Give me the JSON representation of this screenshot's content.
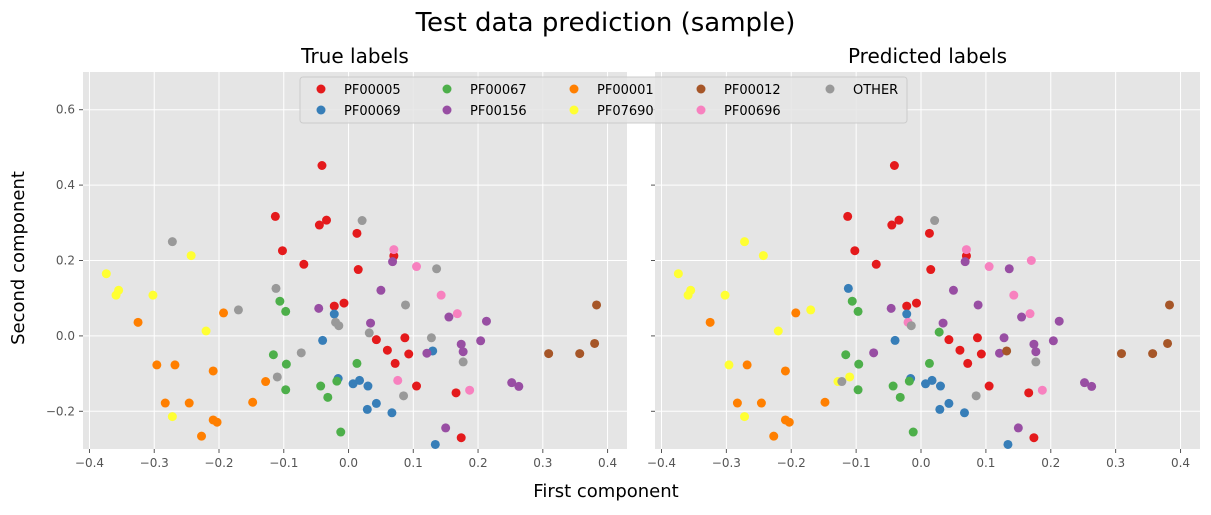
{
  "figure": {
    "title": "Test data prediction (sample)",
    "xlabel": "First component",
    "ylabel": "Second component"
  },
  "legend": {
    "placement": "top-center",
    "entries": [
      {
        "name": "PF00005",
        "color": "#e41a1c"
      },
      {
        "name": "PF00069",
        "color": "#377eb8"
      },
      {
        "name": "PF00067",
        "color": "#4daf4a"
      },
      {
        "name": "PF00156",
        "color": "#984ea3"
      },
      {
        "name": "PF00001",
        "color": "#ff7f00"
      },
      {
        "name": "PF07690",
        "color": "#ffff33"
      },
      {
        "name": "PF00012",
        "color": "#a65628"
      },
      {
        "name": "PF00696",
        "color": "#f781bf"
      },
      {
        "name": "OTHER",
        "color": "#999999"
      }
    ]
  },
  "chart_data": [
    {
      "type": "scatter",
      "title": "True labels",
      "xlim": [
        -0.41,
        0.43
      ],
      "ylim": [
        -0.3,
        0.7
      ],
      "xticks": [
        -0.4,
        -0.3,
        -0.2,
        -0.1,
        0.0,
        0.1,
        0.2,
        0.3,
        0.4
      ],
      "xtick_labels": [
        "−0.4",
        "−0.3",
        "−0.2",
        "−0.1",
        "0.0",
        "0.1",
        "0.2",
        "0.3",
        "0.4"
      ],
      "yticks": [
        -0.2,
        0.0,
        0.2,
        0.4,
        0.6
      ],
      "ytick_labels": [
        "−0.2",
        "0.0",
        "0.2",
        "0.4",
        "0.6"
      ],
      "grid": true,
      "series": [
        {
          "name": "PF00005",
          "color": "#e41a1c",
          "points": [
            [
              -0.113,
              0.317
            ],
            [
              -0.102,
              0.226
            ],
            [
              -0.041,
              0.452
            ],
            [
              -0.034,
              0.307
            ],
            [
              -0.045,
              0.294
            ],
            [
              -0.069,
              0.19
            ],
            [
              0.013,
              0.272
            ],
            [
              0.015,
              0.176
            ],
            [
              -0.022,
              0.079
            ],
            [
              -0.007,
              0.087
            ],
            [
              0.07,
              0.212
            ],
            [
              0.043,
              -0.01
            ],
            [
              0.06,
              -0.038
            ],
            [
              0.072,
              -0.073
            ],
            [
              0.087,
              -0.005
            ],
            [
              0.093,
              -0.048
            ],
            [
              0.105,
              -0.133
            ],
            [
              0.166,
              -0.151
            ],
            [
              0.174,
              -0.27
            ]
          ]
        },
        {
          "name": "PF00069",
          "color": "#377eb8",
          "points": [
            [
              -0.022,
              0.058
            ],
            [
              -0.04,
              -0.012
            ],
            [
              -0.016,
              -0.113
            ],
            [
              0.007,
              -0.127
            ],
            [
              0.017,
              -0.118
            ],
            [
              0.03,
              -0.133
            ],
            [
              0.043,
              -0.179
            ],
            [
              0.029,
              -0.195
            ],
            [
              0.067,
              -0.204
            ],
            [
              0.13,
              -0.04
            ],
            [
              0.134,
              -0.288
            ]
          ]
        },
        {
          "name": "PF00067",
          "color": "#4daf4a",
          "points": [
            [
              -0.097,
              0.065
            ],
            [
              -0.106,
              0.092
            ],
            [
              -0.116,
              -0.05
            ],
            [
              -0.096,
              -0.075
            ],
            [
              -0.097,
              -0.143
            ],
            [
              -0.043,
              -0.133
            ],
            [
              -0.032,
              -0.163
            ],
            [
              -0.018,
              -0.12
            ],
            [
              0.013,
              -0.073
            ],
            [
              -0.012,
              -0.255
            ]
          ]
        },
        {
          "name": "PF00156",
          "color": "#984ea3",
          "points": [
            [
              -0.046,
              0.073
            ],
            [
              0.034,
              0.034
            ],
            [
              0.05,
              0.121
            ],
            [
              0.068,
              0.197
            ],
            [
              0.121,
              -0.046
            ],
            [
              0.155,
              0.05
            ],
            [
              0.174,
              -0.022
            ],
            [
              0.177,
              -0.042
            ],
            [
              0.204,
              -0.013
            ],
            [
              0.213,
              0.039
            ],
            [
              0.252,
              -0.124
            ],
            [
              0.263,
              -0.134
            ],
            [
              0.15,
              -0.244
            ]
          ]
        },
        {
          "name": "PF00001",
          "color": "#ff7f00",
          "points": [
            [
              -0.325,
              0.036
            ],
            [
              -0.296,
              -0.077
            ],
            [
              -0.283,
              -0.178
            ],
            [
              -0.268,
              -0.077
            ],
            [
              -0.246,
              -0.178
            ],
            [
              -0.227,
              -0.266
            ],
            [
              -0.209,
              -0.093
            ],
            [
              -0.209,
              -0.223
            ],
            [
              -0.203,
              -0.229
            ],
            [
              -0.193,
              0.061
            ],
            [
              -0.148,
              -0.176
            ],
            [
              -0.128,
              -0.121
            ]
          ]
        },
        {
          "name": "PF07690",
          "color": "#ffff33",
          "points": [
            [
              -0.374,
              0.165
            ],
            [
              -0.359,
              0.108
            ],
            [
              -0.355,
              0.121
            ],
            [
              -0.302,
              0.108
            ],
            [
              -0.243,
              0.213
            ],
            [
              -0.272,
              -0.214
            ],
            [
              -0.22,
              0.013
            ]
          ]
        },
        {
          "name": "PF00012",
          "color": "#a65628",
          "points": [
            [
              0.309,
              -0.047
            ],
            [
              0.357,
              -0.047
            ],
            [
              0.38,
              -0.02
            ],
            [
              0.383,
              0.082
            ]
          ]
        },
        {
          "name": "PF00696",
          "color": "#f781bf",
          "points": [
            [
              0.07,
              0.229
            ],
            [
              0.105,
              0.184
            ],
            [
              0.143,
              0.108
            ],
            [
              0.168,
              0.059
            ],
            [
              0.187,
              -0.144
            ],
            [
              0.076,
              -0.118
            ]
          ]
        },
        {
          "name": "OTHER",
          "color": "#999999",
          "points": [
            [
              -0.272,
              0.25
            ],
            [
              -0.17,
              0.069
            ],
            [
              -0.112,
              0.126
            ],
            [
              -0.11,
              -0.109
            ],
            [
              -0.073,
              -0.045
            ],
            [
              -0.02,
              0.036
            ],
            [
              -0.015,
              0.027
            ],
            [
              0.021,
              0.306
            ],
            [
              0.032,
              0.008
            ],
            [
              0.088,
              0.082
            ],
            [
              0.085,
              -0.159
            ],
            [
              0.128,
              -0.005
            ],
            [
              0.136,
              0.178
            ],
            [
              0.177,
              -0.069
            ]
          ]
        }
      ]
    },
    {
      "type": "scatter",
      "title": "Predicted labels",
      "xlim": [
        -0.41,
        0.43
      ],
      "ylim": [
        -0.3,
        0.7
      ],
      "xticks": [
        -0.4,
        -0.3,
        -0.2,
        -0.1,
        0.0,
        0.1,
        0.2,
        0.3,
        0.4
      ],
      "xtick_labels": [
        "−0.4",
        "−0.3",
        "−0.2",
        "−0.1",
        "0.0",
        "0.1",
        "0.2",
        "0.3",
        "0.4"
      ],
      "yticks": [
        -0.2,
        0.0,
        0.2,
        0.4,
        0.6
      ],
      "ytick_labels": [
        "−0.2",
        "0.0",
        "0.2",
        "0.4",
        "0.6"
      ],
      "grid": true,
      "series": [
        {
          "name": "PF00005",
          "color": "#e41a1c",
          "points": [
            [
              -0.113,
              0.317
            ],
            [
              -0.102,
              0.226
            ],
            [
              -0.041,
              0.452
            ],
            [
              -0.034,
              0.307
            ],
            [
              -0.045,
              0.294
            ],
            [
              -0.069,
              0.19
            ],
            [
              0.013,
              0.272
            ],
            [
              0.015,
              0.176
            ],
            [
              -0.022,
              0.079
            ],
            [
              -0.007,
              0.087
            ],
            [
              0.07,
              0.212
            ],
            [
              0.043,
              -0.01
            ],
            [
              0.06,
              -0.038
            ],
            [
              0.072,
              -0.073
            ],
            [
              0.087,
              -0.005
            ],
            [
              0.093,
              -0.048
            ],
            [
              0.105,
              -0.133
            ],
            [
              0.166,
              -0.151
            ],
            [
              0.174,
              -0.27
            ]
          ]
        },
        {
          "name": "PF00069",
          "color": "#377eb8",
          "points": [
            [
              -0.112,
              0.126
            ],
            [
              -0.022,
              0.058
            ],
            [
              -0.04,
              -0.012
            ],
            [
              -0.016,
              -0.113
            ],
            [
              0.007,
              -0.127
            ],
            [
              0.017,
              -0.118
            ],
            [
              0.03,
              -0.133
            ],
            [
              0.043,
              -0.179
            ],
            [
              0.029,
              -0.195
            ],
            [
              0.067,
              -0.204
            ],
            [
              0.134,
              -0.288
            ]
          ]
        },
        {
          "name": "PF00067",
          "color": "#4daf4a",
          "points": [
            [
              -0.097,
              0.065
            ],
            [
              -0.106,
              0.092
            ],
            [
              -0.116,
              -0.05
            ],
            [
              -0.096,
              -0.075
            ],
            [
              -0.097,
              -0.143
            ],
            [
              -0.043,
              -0.133
            ],
            [
              -0.032,
              -0.163
            ],
            [
              -0.018,
              -0.12
            ],
            [
              0.013,
              -0.073
            ],
            [
              -0.012,
              -0.255
            ],
            [
              0.028,
              0.01
            ]
          ]
        },
        {
          "name": "PF00156",
          "color": "#984ea3",
          "points": [
            [
              -0.046,
              0.073
            ],
            [
              -0.073,
              -0.045
            ],
            [
              0.034,
              0.034
            ],
            [
              0.05,
              0.121
            ],
            [
              0.068,
              0.197
            ],
            [
              0.088,
              0.082
            ],
            [
              0.121,
              -0.046
            ],
            [
              0.128,
              -0.005
            ],
            [
              0.136,
              0.178
            ],
            [
              0.155,
              0.05
            ],
            [
              0.174,
              -0.022
            ],
            [
              0.177,
              -0.042
            ],
            [
              0.204,
              -0.013
            ],
            [
              0.213,
              0.039
            ],
            [
              0.252,
              -0.124
            ],
            [
              0.263,
              -0.134
            ],
            [
              0.15,
              -0.244
            ]
          ]
        },
        {
          "name": "PF00001",
          "color": "#ff7f00",
          "points": [
            [
              -0.325,
              0.036
            ],
            [
              -0.283,
              -0.178
            ],
            [
              -0.268,
              -0.077
            ],
            [
              -0.246,
              -0.178
            ],
            [
              -0.227,
              -0.266
            ],
            [
              -0.209,
              -0.093
            ],
            [
              -0.209,
              -0.223
            ],
            [
              -0.203,
              -0.229
            ],
            [
              -0.193,
              0.061
            ],
            [
              -0.148,
              -0.176
            ]
          ]
        },
        {
          "name": "PF07690",
          "color": "#ffff33",
          "points": [
            [
              -0.374,
              0.165
            ],
            [
              -0.359,
              0.108
            ],
            [
              -0.355,
              0.121
            ],
            [
              -0.302,
              0.108
            ],
            [
              -0.243,
              0.213
            ],
            [
              -0.272,
              0.25
            ],
            [
              -0.272,
              -0.214
            ],
            [
              -0.22,
              0.013
            ],
            [
              -0.296,
              -0.077
            ],
            [
              -0.17,
              0.069
            ],
            [
              -0.128,
              -0.121
            ],
            [
              -0.11,
              -0.109
            ]
          ]
        },
        {
          "name": "PF00012",
          "color": "#a65628",
          "points": [
            [
              0.309,
              -0.047
            ],
            [
              0.357,
              -0.047
            ],
            [
              0.38,
              -0.02
            ],
            [
              0.383,
              0.082
            ],
            [
              0.132,
              -0.04
            ]
          ]
        },
        {
          "name": "PF00696",
          "color": "#f781bf",
          "points": [
            [
              -0.02,
              0.036
            ],
            [
              0.07,
              0.229
            ],
            [
              0.105,
              0.184
            ],
            [
              0.143,
              0.108
            ],
            [
              0.168,
              0.059
            ],
            [
              0.187,
              -0.144
            ],
            [
              0.17,
              0.2
            ]
          ]
        },
        {
          "name": "OTHER",
          "color": "#999999",
          "points": [
            [
              -0.122,
              -0.121
            ],
            [
              -0.015,
              0.027
            ],
            [
              0.021,
              0.306
            ],
            [
              0.085,
              -0.159
            ],
            [
              0.177,
              -0.069
            ]
          ]
        }
      ]
    }
  ]
}
